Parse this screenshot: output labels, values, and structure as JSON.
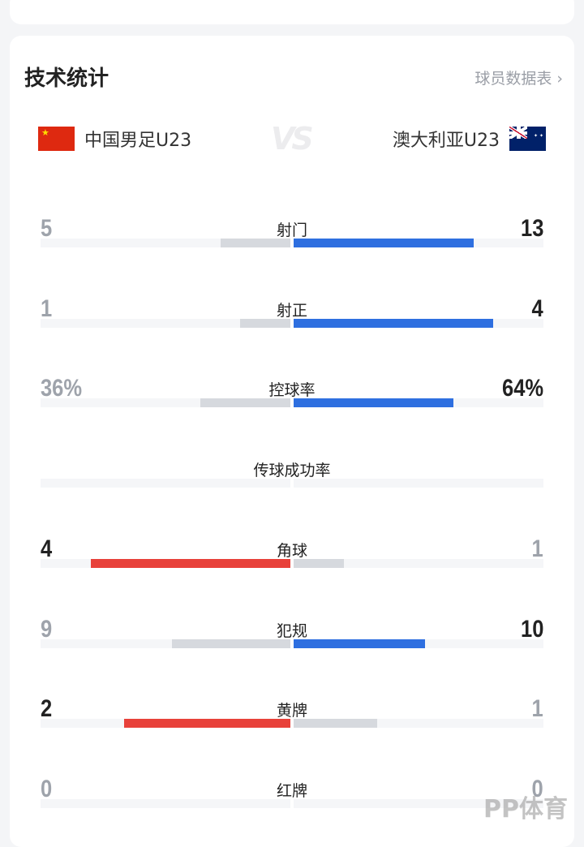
{
  "header": {
    "title": "技术统计",
    "player_stats_link": "球员数据表 ›"
  },
  "teams": {
    "home": {
      "name": "中国男足U23",
      "flag": "china-flag"
    },
    "away": {
      "name": "澳大利亚U23",
      "flag": "australia-flag"
    },
    "vs": "VS"
  },
  "colors": {
    "home_win": "#e8413a",
    "away_win": "#2e6fe0",
    "lose": "#d6d9de",
    "track": "#f5f6f8"
  },
  "stats": [
    {
      "label": "射门",
      "home": "5",
      "away": "13",
      "home_value": 5,
      "away_value": 13
    },
    {
      "label": "射正",
      "home": "1",
      "away": "4",
      "home_value": 1,
      "away_value": 4
    },
    {
      "label": "控球率",
      "home": "36%",
      "away": "64%",
      "home_value": 36,
      "away_value": 64
    },
    {
      "label": "传球成功率",
      "home": "",
      "away": "",
      "home_value": 0,
      "away_value": 0
    },
    {
      "label": "角球",
      "home": "4",
      "away": "1",
      "home_value": 4,
      "away_value": 1
    },
    {
      "label": "犯规",
      "home": "9",
      "away": "10",
      "home_value": 9,
      "away_value": 10
    },
    {
      "label": "黄牌",
      "home": "2",
      "away": "1",
      "home_value": 2,
      "away_value": 1
    },
    {
      "label": "红牌",
      "home": "0",
      "away": "0",
      "home_value": 0,
      "away_value": 0
    }
  ],
  "watermark": "PP体育"
}
